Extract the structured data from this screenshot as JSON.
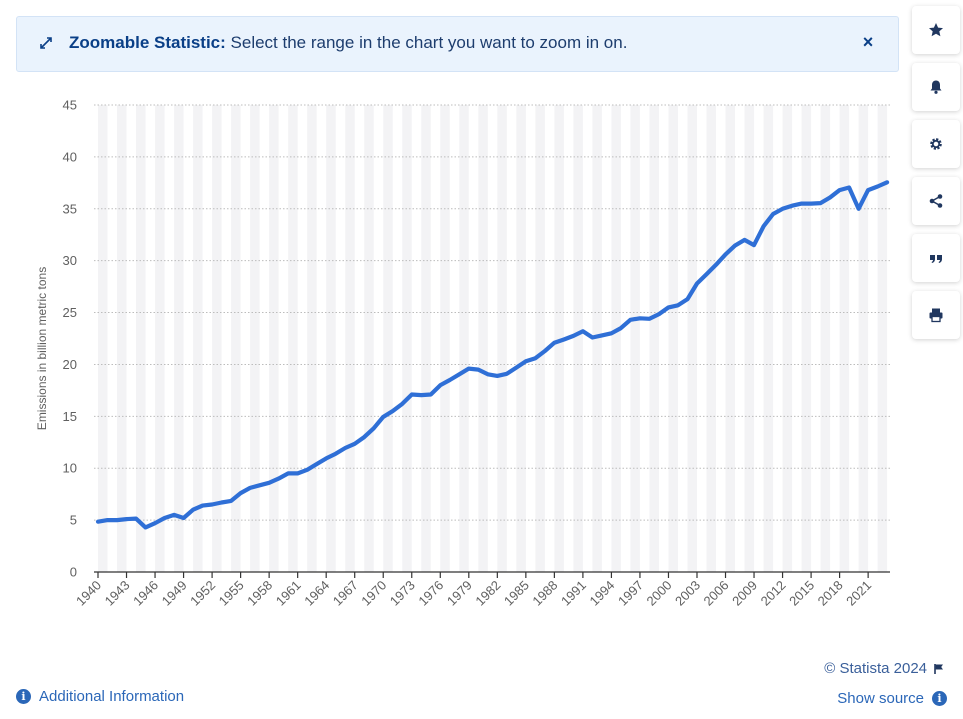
{
  "banner": {
    "title": "Zoomable Statistic:",
    "text": " Select the range in the chart you want to zoom in on.",
    "close_label": "×"
  },
  "tools": [
    {
      "icon": "star-icon",
      "name": "favorite"
    },
    {
      "icon": "bell-icon",
      "name": "notification"
    },
    {
      "icon": "gear-icon",
      "name": "settings"
    },
    {
      "icon": "share-icon",
      "name": "share"
    },
    {
      "icon": "quote-icon",
      "name": "cite"
    },
    {
      "icon": "print-icon",
      "name": "print"
    }
  ],
  "footer": {
    "credit": "© Statista 2024",
    "show_source": "Show source",
    "additional_info": "Additional Information"
  },
  "colors": {
    "line": "#2f6fd6",
    "band": "#f3f3f5",
    "grid": "#bcbcbc",
    "axis": "#333333",
    "tick": "#606060"
  },
  "chart_data": {
    "type": "line",
    "title": "",
    "xlabel": "",
    "ylabel": "Emissions in billion metric tons",
    "ylim": [
      0,
      45
    ],
    "yticks": [
      0,
      5,
      10,
      15,
      20,
      25,
      30,
      35,
      40,
      45
    ],
    "xtick_labels": [
      "1940",
      "1943",
      "1946",
      "1949",
      "1952",
      "1955",
      "1958",
      "1961",
      "1964",
      "1967",
      "1970",
      "1973",
      "1976",
      "1979",
      "1982",
      "1985",
      "1988",
      "1991",
      "1994",
      "1997",
      "2000",
      "2003",
      "2006",
      "2009",
      "2012",
      "2015",
      "2018",
      "2021"
    ],
    "grid": true,
    "series": [
      {
        "x": [
          1940,
          1941,
          1942,
          1943,
          1944,
          1945,
          1946,
          1947,
          1948,
          1949,
          1950,
          1951,
          1952,
          1953,
          1954,
          1955,
          1956,
          1957,
          1958,
          1959,
          1960,
          1961,
          1962,
          1963,
          1964,
          1965,
          1966,
          1967,
          1968,
          1969,
          1970,
          1971,
          1972,
          1973,
          1974,
          1975,
          1976,
          1977,
          1978,
          1979,
          1980,
          1981,
          1982,
          1983,
          1984,
          1985,
          1986,
          1987,
          1988,
          1989,
          1990,
          1991,
          1992,
          1993,
          1994,
          1995,
          1996,
          1997,
          1998,
          1999,
          2000,
          2001,
          2002,
          2003,
          2004,
          2005,
          2006,
          2007,
          2008,
          2009,
          2010,
          2011,
          2012,
          2013,
          2014,
          2015,
          2016,
          2017,
          2018,
          2019,
          2020,
          2021,
          2022,
          2023
        ],
        "y": [
          4.85,
          5.0,
          5.0,
          5.1,
          5.15,
          4.3,
          4.7,
          5.2,
          5.5,
          5.2,
          6.0,
          6.4,
          6.5,
          6.7,
          6.85,
          7.6,
          8.1,
          8.35,
          8.6,
          9.0,
          9.5,
          9.5,
          9.85,
          10.4,
          10.95,
          11.4,
          11.95,
          12.35,
          13.0,
          13.85,
          14.95,
          15.5,
          16.2,
          17.1,
          17.05,
          17.1,
          18.0,
          18.5,
          19.05,
          19.6,
          19.5,
          19.05,
          18.9,
          19.1,
          19.7,
          20.3,
          20.6,
          21.3,
          22.1,
          22.4,
          22.75,
          23.2,
          22.6,
          22.8,
          23.0,
          23.5,
          24.3,
          24.45,
          24.4,
          24.85,
          25.5,
          25.7,
          26.3,
          27.8,
          28.7,
          29.6,
          30.6,
          31.45,
          32.0,
          31.5,
          33.3,
          34.5,
          35.0,
          35.3,
          35.5,
          35.5,
          35.55,
          36.1,
          36.8,
          37.05,
          35.0,
          36.8,
          37.15,
          37.55
        ]
      }
    ]
  }
}
